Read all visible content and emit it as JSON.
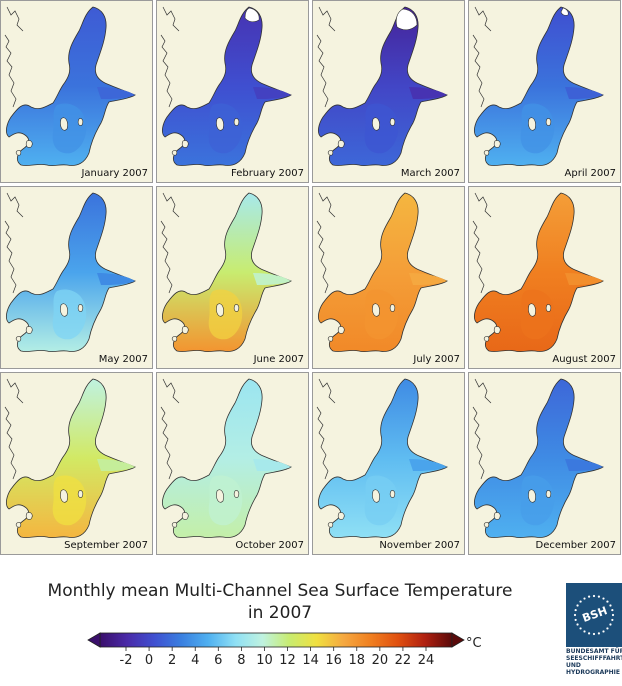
{
  "panels": [
    {
      "label": "January 2007",
      "sst": 3.5,
      "north_sst": 2.5,
      "south_sst": 6.0,
      "ice": "none"
    },
    {
      "label": "February 2007",
      "sst": 2.0,
      "north_sst": 0.5,
      "south_sst": 3.5,
      "ice": "small"
    },
    {
      "label": "March 2007",
      "sst": 1.5,
      "north_sst": -0.5,
      "south_sst": 3.0,
      "ice": "large"
    },
    {
      "label": "April 2007",
      "sst": 3.5,
      "north_sst": 2.0,
      "south_sst": 6.0,
      "ice": "tiny"
    },
    {
      "label": "May 2007",
      "sst": 5.5,
      "north_sst": 3.5,
      "south_sst": 9.5,
      "ice": "none"
    },
    {
      "label": "June 2007",
      "sst": 12.0,
      "north_sst": 9.0,
      "south_sst": 17.0,
      "ice": "none"
    },
    {
      "label": "July 2007",
      "sst": 16.5,
      "north_sst": 15.5,
      "south_sst": 17.5,
      "ice": "none"
    },
    {
      "label": "August 2007",
      "sst": 18.0,
      "north_sst": 16.5,
      "south_sst": 19.0,
      "ice": "none"
    },
    {
      "label": "September 2007",
      "sst": 12.5,
      "north_sst": 10.0,
      "south_sst": 15.5,
      "ice": "none"
    },
    {
      "label": "October 2007",
      "sst": 9.5,
      "north_sst": 8.5,
      "south_sst": 11.0,
      "ice": "none"
    },
    {
      "label": "November 2007",
      "sst": 6.5,
      "north_sst": 4.5,
      "south_sst": 8.0,
      "ice": "none"
    },
    {
      "label": "December 2007",
      "sst": 4.5,
      "north_sst": 3.0,
      "south_sst": 6.0,
      "ice": "none"
    }
  ],
  "title_line1": "Monthly mean Multi-Channel Sea Surface Temperature",
  "title_line2": "in 2007",
  "colorbar": {
    "unit": "°C",
    "min": -2,
    "max": 24,
    "ticks": [
      "-2",
      "0",
      "2",
      "4",
      "6",
      "8",
      "10",
      "12",
      "14",
      "16",
      "18",
      "20",
      "22",
      "24"
    ],
    "stops": [
      {
        "v": -2,
        "c": "#3a0f6b"
      },
      {
        "v": 0,
        "c": "#4a2aa8"
      },
      {
        "v": 2,
        "c": "#3f4fd0"
      },
      {
        "v": 4,
        "c": "#3a7fe0"
      },
      {
        "v": 6,
        "c": "#4fb0f0"
      },
      {
        "v": 8,
        "c": "#8fe0f5"
      },
      {
        "v": 10,
        "c": "#bff2e0"
      },
      {
        "v": 12,
        "c": "#c8ec70"
      },
      {
        "v": 14,
        "c": "#f0e040"
      },
      {
        "v": 16,
        "c": "#f5a840"
      },
      {
        "v": 18,
        "c": "#f07f20"
      },
      {
        "v": 20,
        "c": "#e05010"
      },
      {
        "v": 22,
        "c": "#b02010"
      },
      {
        "v": 24,
        "c": "#5a0a0a"
      }
    ]
  },
  "colors": {
    "land": "#f5f3df",
    "ice": "#ffffff",
    "coast": "#333333"
  },
  "logo": {
    "mark": "BSH",
    "lines": [
      "BUNDESAMT FÜR",
      "SEESCHIFFFAHRT",
      "UND",
      "HYDROGRAPHIE"
    ]
  }
}
